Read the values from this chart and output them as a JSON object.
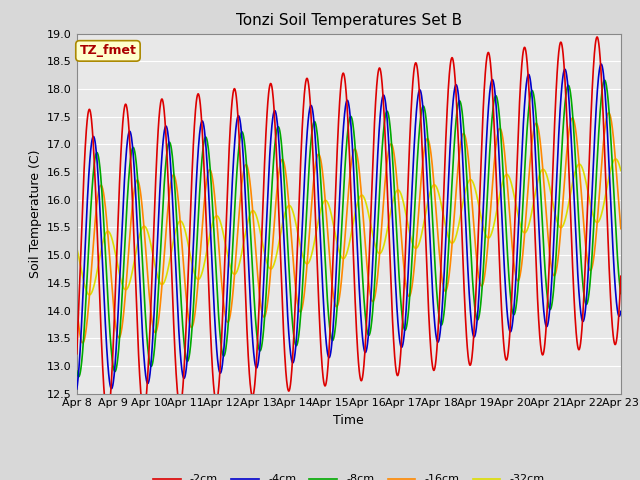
{
  "title": "Tonzi Soil Temperatures Set B",
  "xlabel": "Time",
  "ylabel": "Soil Temperature (C)",
  "ylim": [
    12.5,
    19.0
  ],
  "xlim": [
    0,
    360
  ],
  "xtick_labels": [
    "Apr 8",
    "Apr 9",
    "Apr 10",
    "Apr 11",
    "Apr 12",
    "Apr 13",
    "Apr 14",
    "Apr 15",
    "Apr 16",
    "Apr 17",
    "Apr 18",
    "Apr 19",
    "Apr 20",
    "Apr 21",
    "Apr 22",
    "Apr 23"
  ],
  "ytick_values": [
    12.5,
    13.0,
    13.5,
    14.0,
    14.5,
    15.0,
    15.5,
    16.0,
    16.5,
    17.0,
    17.5,
    18.0,
    18.5,
    19.0
  ],
  "series": {
    "-2cm": {
      "color": "#dd0000",
      "lw": 1.2
    },
    "-4cm": {
      "color": "#0000cc",
      "lw": 1.2
    },
    "-8cm": {
      "color": "#00aa00",
      "lw": 1.2
    },
    "-16cm": {
      "color": "#ff8800",
      "lw": 1.2
    },
    "-32cm": {
      "color": "#dddd00",
      "lw": 1.2
    }
  },
  "mean_start": 14.8,
  "mean_end": 16.2,
  "amp_2": 2.8,
  "amp_4": 2.3,
  "amp_8": 2.0,
  "amp_16": 1.4,
  "amp_32": 0.55,
  "phase_2": -0.6,
  "phase_4": -1.3,
  "phase_8": -1.9,
  "phase_16": -2.6,
  "phase_32": 2.5,
  "annotation_text": "TZ_fmet",
  "annotation_color": "#aa0000",
  "annotation_bg": "#ffffcc",
  "annotation_border": "#aa8800",
  "fig_facecolor": "#d8d8d8",
  "plot_facecolor": "#e8e8e8",
  "grid_color": "#ffffff",
  "title_fontsize": 11,
  "axis_fontsize": 9,
  "tick_fontsize": 8
}
